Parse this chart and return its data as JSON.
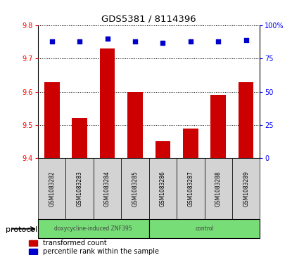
{
  "title": "GDS5381 / 8114396",
  "categories": [
    "GSM1083282",
    "GSM1083283",
    "GSM1083284",
    "GSM1083285",
    "GSM1083286",
    "GSM1083287",
    "GSM1083288",
    "GSM1083289"
  ],
  "bar_values": [
    9.63,
    9.52,
    9.73,
    9.6,
    9.45,
    9.49,
    9.59,
    9.63
  ],
  "percentile_values": [
    88,
    88,
    90,
    88,
    87,
    88,
    88,
    89
  ],
  "bar_color": "#cc0000",
  "dot_color": "#0000cc",
  "ylim_left": [
    9.4,
    9.8
  ],
  "ylim_right": [
    0,
    100
  ],
  "yticks_left": [
    9.4,
    9.5,
    9.6,
    9.7,
    9.8
  ],
  "yticks_right": [
    0,
    25,
    50,
    75,
    100
  ],
  "protocol_groups": [
    {
      "label": "doxycycline-induced ZNF395",
      "count": 4,
      "color": "#90ee90"
    },
    {
      "label": "control",
      "count": 4,
      "color": "#90ee90"
    }
  ],
  "protocol_label": "protocol",
  "legend_bar_label": "transformed count",
  "legend_dot_label": "percentile rank within the sample",
  "bar_color_legend": "#cc0000",
  "dot_color_legend": "#0000cc",
  "tick_label_area_color": "#d3d3d3",
  "green_color": "#77dd77"
}
